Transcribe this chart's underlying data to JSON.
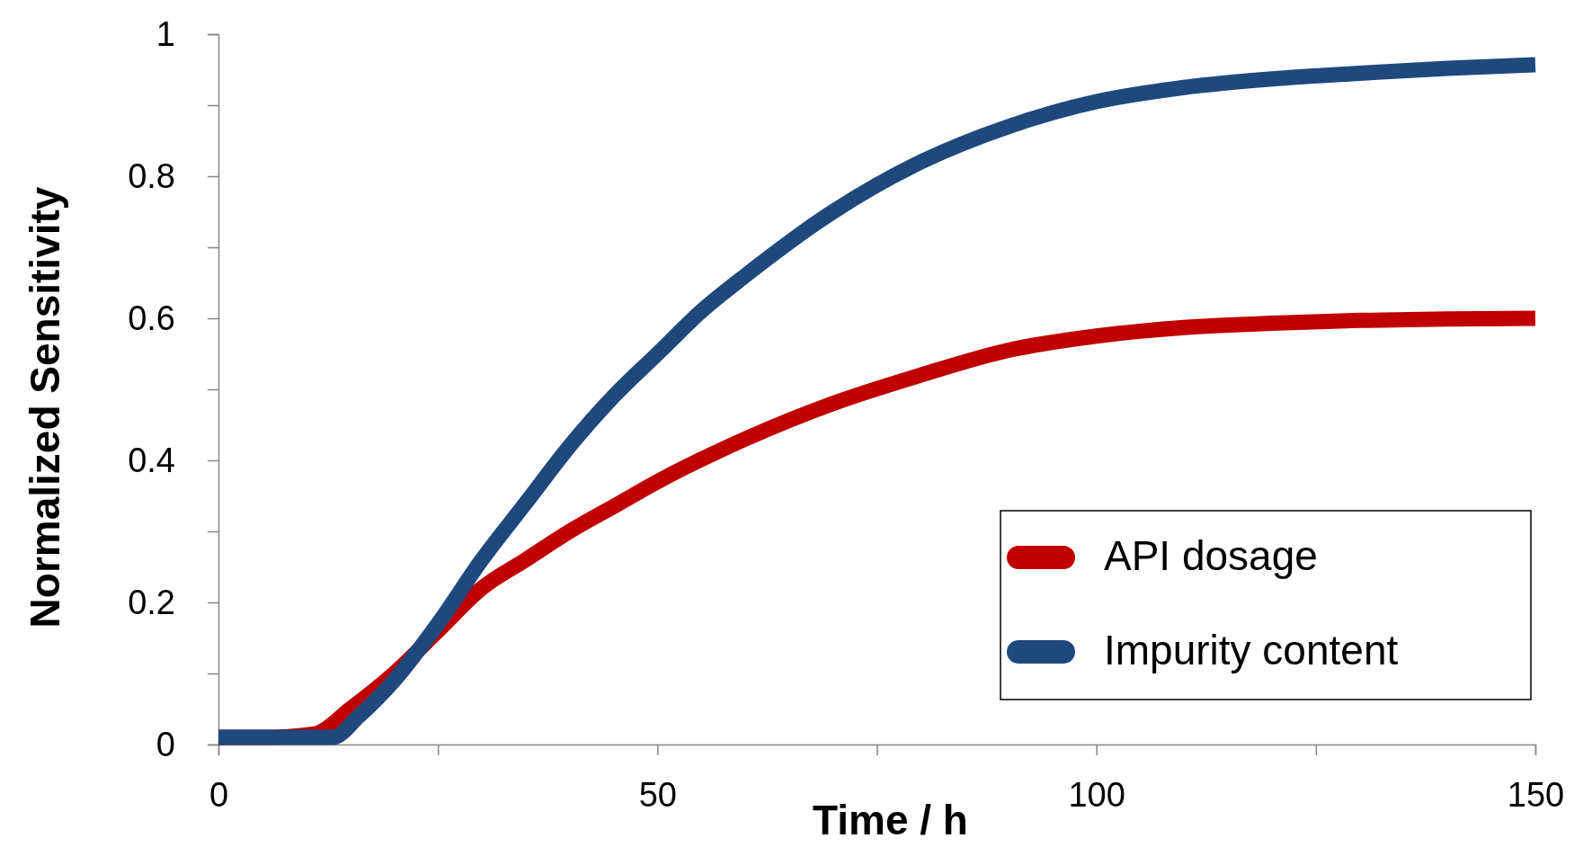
{
  "chart_data": {
    "type": "line",
    "xlabel": "Time / h",
    "ylabel": "Normalized Sensitivity",
    "xlim": [
      0,
      150
    ],
    "xticks": [
      0,
      {
        "value": 25,
        "label": null
      },
      50,
      {
        "value": 75,
        "label": null
      },
      100,
      {
        "value": 125,
        "label": null
      },
      150
    ],
    "ylim": [
      0,
      1
    ],
    "yticks": [
      0,
      {
        "value": 0.1,
        "label": null
      },
      0.2,
      {
        "value": 0.3,
        "label": null
      },
      0.4,
      {
        "value": 0.5,
        "label": null
      },
      0.6,
      {
        "value": 0.7,
        "label": null
      },
      0.8,
      {
        "value": 0.9,
        "label": null
      },
      1
    ],
    "grid": false,
    "legend": "bottom right",
    "marker": "none",
    "line_style": "solid",
    "series": [
      {
        "name": "API dosage",
        "color": "#c00000",
        "x": [
          0,
          5,
          11,
          15,
          20,
          25,
          30,
          35,
          40,
          45,
          50,
          60,
          70,
          80,
          90,
          100,
          110,
          120,
          130,
          140,
          150
        ],
        "values": [
          0.01,
          0.01,
          0.015,
          0.05,
          0.1,
          0.16,
          0.22,
          0.26,
          0.3,
          0.335,
          0.37,
          0.43,
          0.48,
          0.52,
          0.555,
          0.575,
          0.587,
          0.593,
          0.597,
          0.599,
          0.6
        ]
      },
      {
        "name": "Impurity content",
        "color": "#1f497d",
        "x": [
          0,
          5,
          13,
          16,
          20,
          25,
          30,
          35,
          40,
          45,
          50,
          55,
          60,
          70,
          80,
          90,
          100,
          110,
          120,
          130,
          140,
          150
        ],
        "values": [
          0.01,
          0.01,
          0.01,
          0.04,
          0.09,
          0.17,
          0.26,
          0.34,
          0.42,
          0.49,
          0.55,
          0.61,
          0.66,
          0.75,
          0.82,
          0.87,
          0.905,
          0.925,
          0.937,
          0.945,
          0.952,
          0.957
        ]
      }
    ]
  }
}
